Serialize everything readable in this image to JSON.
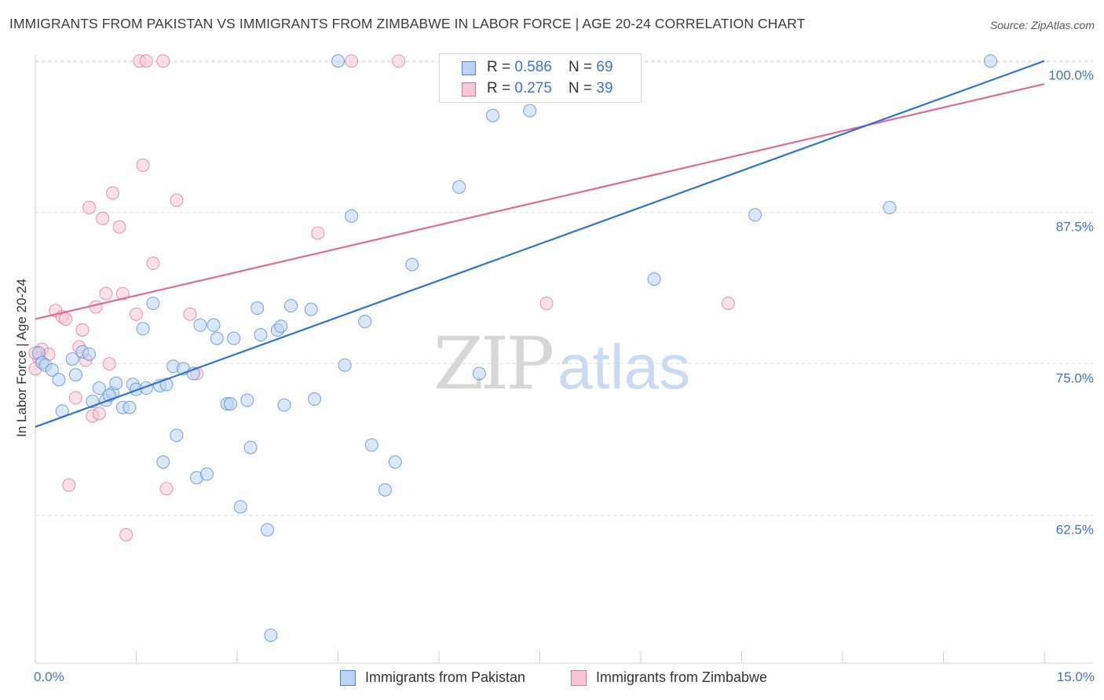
{
  "title": "IMMIGRANTS FROM PAKISTAN VS IMMIGRANTS FROM ZIMBABWE IN LABOR FORCE | AGE 20-24 CORRELATION CHART",
  "source": "Source: ZipAtlas.com",
  "watermark": {
    "zip": "ZIP",
    "atlas": "atlas"
  },
  "colors": {
    "pakistan": "#4a86d8",
    "pakistan_fill": "#bcd3f3",
    "zimbabwe": "#e07098",
    "zimbabwe_fill": "#f8c6d6",
    "axis_text": "#3f74c8"
  },
  "legend_top": {
    "rows": [
      {
        "r_label": "R = ",
        "r_value": "0.586",
        "n_label": "N = ",
        "n_value": "69"
      },
      {
        "r_label": "R = ",
        "r_value": "0.275",
        "n_label": "N = ",
        "n_value": "39"
      }
    ]
  },
  "chart_data": {
    "type": "scatter",
    "title": "IMMIGRANTS FROM PAKISTAN VS IMMIGRANTS FROM ZIMBABWE IN LABOR FORCE | AGE 20-24 CORRELATION CHART",
    "xlabel": "",
    "ylabel": "In Labor Force | Age 20-24",
    "xlim": [
      0,
      15
    ],
    "ylim": [
      50.3,
      100.5
    ],
    "x_tick_labels": [
      "0.0%",
      "15.0%"
    ],
    "y_ticks": [
      62.5,
      75.0,
      87.5,
      100.0
    ],
    "y_tick_labels": [
      "62.5%",
      "75.0%",
      "87.5%",
      "100.0%"
    ],
    "grid": true,
    "legend_position": "bottom",
    "series": [
      {
        "name": "Immigrants from Pakistan",
        "trend": [
          [
            0,
            69.8
          ],
          [
            15,
            100.0
          ]
        ],
        "points": [
          [
            0.05,
            75.9
          ],
          [
            0.1,
            75.1
          ],
          [
            0.15,
            74.9
          ],
          [
            0.25,
            74.5
          ],
          [
            0.35,
            73.7
          ],
          [
            0.4,
            71.1
          ],
          [
            0.55,
            75.4
          ],
          [
            0.6,
            74.1
          ],
          [
            0.7,
            76.0
          ],
          [
            0.8,
            75.8
          ],
          [
            0.85,
            71.9
          ],
          [
            0.95,
            73.0
          ],
          [
            1.05,
            72.0
          ],
          [
            1.15,
            72.6
          ],
          [
            1.2,
            73.4
          ],
          [
            1.3,
            71.4
          ],
          [
            1.4,
            71.4
          ],
          [
            1.45,
            73.3
          ],
          [
            1.5,
            72.9
          ],
          [
            1.6,
            77.9
          ],
          [
            1.65,
            73.0
          ],
          [
            1.75,
            80.0
          ],
          [
            1.85,
            73.2
          ],
          [
            1.9,
            66.9
          ],
          [
            1.95,
            73.3
          ],
          [
            2.05,
            74.8
          ],
          [
            2.1,
            69.1
          ],
          [
            2.2,
            74.6
          ],
          [
            2.35,
            74.2
          ],
          [
            2.4,
            65.6
          ],
          [
            2.45,
            78.2
          ],
          [
            2.55,
            65.9
          ],
          [
            2.65,
            78.2
          ],
          [
            2.7,
            77.1
          ],
          [
            2.85,
            71.7
          ],
          [
            2.9,
            71.7
          ],
          [
            2.95,
            77.1
          ],
          [
            3.05,
            63.2
          ],
          [
            3.15,
            72.0
          ],
          [
            3.2,
            68.1
          ],
          [
            3.3,
            79.6
          ],
          [
            3.35,
            77.4
          ],
          [
            3.45,
            61.3
          ],
          [
            3.5,
            52.6
          ],
          [
            3.6,
            77.8
          ],
          [
            3.65,
            78.1
          ],
          [
            3.7,
            71.6
          ],
          [
            3.8,
            79.8
          ],
          [
            4.1,
            79.5
          ],
          [
            4.15,
            72.1
          ],
          [
            4.6,
            74.9
          ],
          [
            4.7,
            87.2
          ],
          [
            4.9,
            78.5
          ],
          [
            5.0,
            68.3
          ],
          [
            5.2,
            64.6
          ],
          [
            5.35,
            66.9
          ],
          [
            5.6,
            83.2
          ],
          [
            6.3,
            89.6
          ],
          [
            6.6,
            74.2
          ],
          [
            6.8,
            95.5
          ],
          [
            7.0,
            100.0
          ],
          [
            7.35,
            95.9
          ],
          [
            4.5,
            100.0
          ],
          [
            6.7,
            100.0
          ],
          [
            9.2,
            82.0
          ],
          [
            10.7,
            87.3
          ],
          [
            12.7,
            87.9
          ],
          [
            14.2,
            100.0
          ],
          [
            1.1,
            72.4
          ]
        ]
      },
      {
        "name": "Immigrants from Zimbabwe",
        "trend": [
          [
            0,
            78.7
          ],
          [
            15,
            98.1
          ]
        ],
        "points": [
          [
            0.05,
            75.5
          ],
          [
            0.1,
            76.2
          ],
          [
            0.2,
            75.8
          ],
          [
            0.3,
            79.4
          ],
          [
            0.4,
            78.9
          ],
          [
            0.45,
            78.7
          ],
          [
            0.5,
            65.0
          ],
          [
            0.6,
            72.2
          ],
          [
            0.65,
            76.4
          ],
          [
            0.7,
            77.8
          ],
          [
            0.75,
            75.3
          ],
          [
            0.8,
            87.9
          ],
          [
            0.85,
            70.7
          ],
          [
            0.9,
            79.7
          ],
          [
            0.95,
            70.9
          ],
          [
            1.0,
            87.0
          ],
          [
            1.05,
            80.8
          ],
          [
            1.1,
            75.0
          ],
          [
            1.15,
            89.1
          ],
          [
            1.25,
            86.3
          ],
          [
            1.3,
            80.8
          ],
          [
            1.35,
            60.9
          ],
          [
            1.5,
            79.1
          ],
          [
            1.55,
            100.0
          ],
          [
            1.6,
            91.4
          ],
          [
            1.65,
            100.0
          ],
          [
            1.75,
            83.3
          ],
          [
            1.9,
            100.0
          ],
          [
            1.95,
            64.7
          ],
          [
            2.1,
            88.5
          ],
          [
            2.3,
            79.1
          ],
          [
            2.4,
            74.2
          ],
          [
            4.2,
            85.8
          ],
          [
            4.7,
            100.0
          ],
          [
            5.4,
            100.0
          ],
          [
            7.6,
            80.0
          ],
          [
            10.3,
            80.0
          ],
          [
            0.0,
            75.9
          ],
          [
            0.0,
            74.6
          ]
        ]
      }
    ]
  },
  "legend_bottom": [
    {
      "label": "Immigrants from Pakistan"
    },
    {
      "label": "Immigrants from Zimbabwe"
    }
  ]
}
